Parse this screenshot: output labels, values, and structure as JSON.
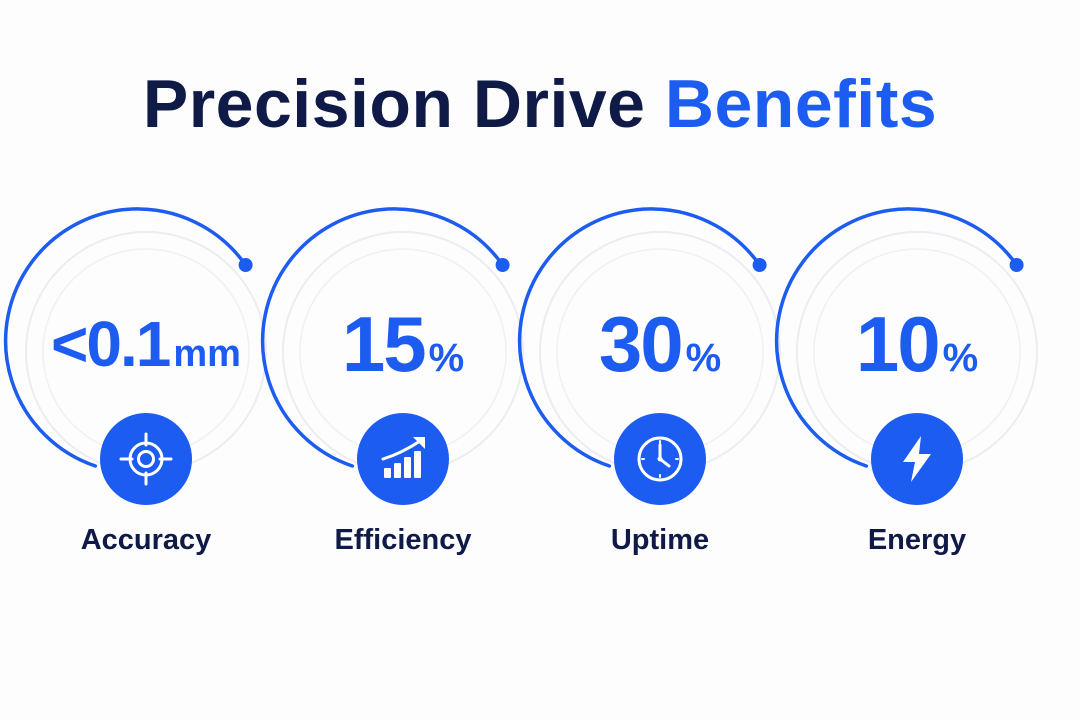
{
  "title": {
    "main": "Precision Drive ",
    "accent": "Benefits"
  },
  "colors": {
    "accent": "#1d5cf0",
    "dark": "#0f1a47",
    "ring_track": "#ececf1"
  },
  "metrics": [
    {
      "number": "<0.1",
      "unit": "mm",
      "label": "Accuracy",
      "icon": "target-crosshair-icon"
    },
    {
      "number": "15",
      "unit": "%",
      "label": "Efficiency",
      "icon": "growth-bar-chart-icon"
    },
    {
      "number": "30",
      "unit": "%",
      "label": "Uptime",
      "icon": "clock-icon"
    },
    {
      "number": "10",
      "unit": "%",
      "label": "Energy",
      "icon": "lightning-bolt-icon"
    }
  ]
}
